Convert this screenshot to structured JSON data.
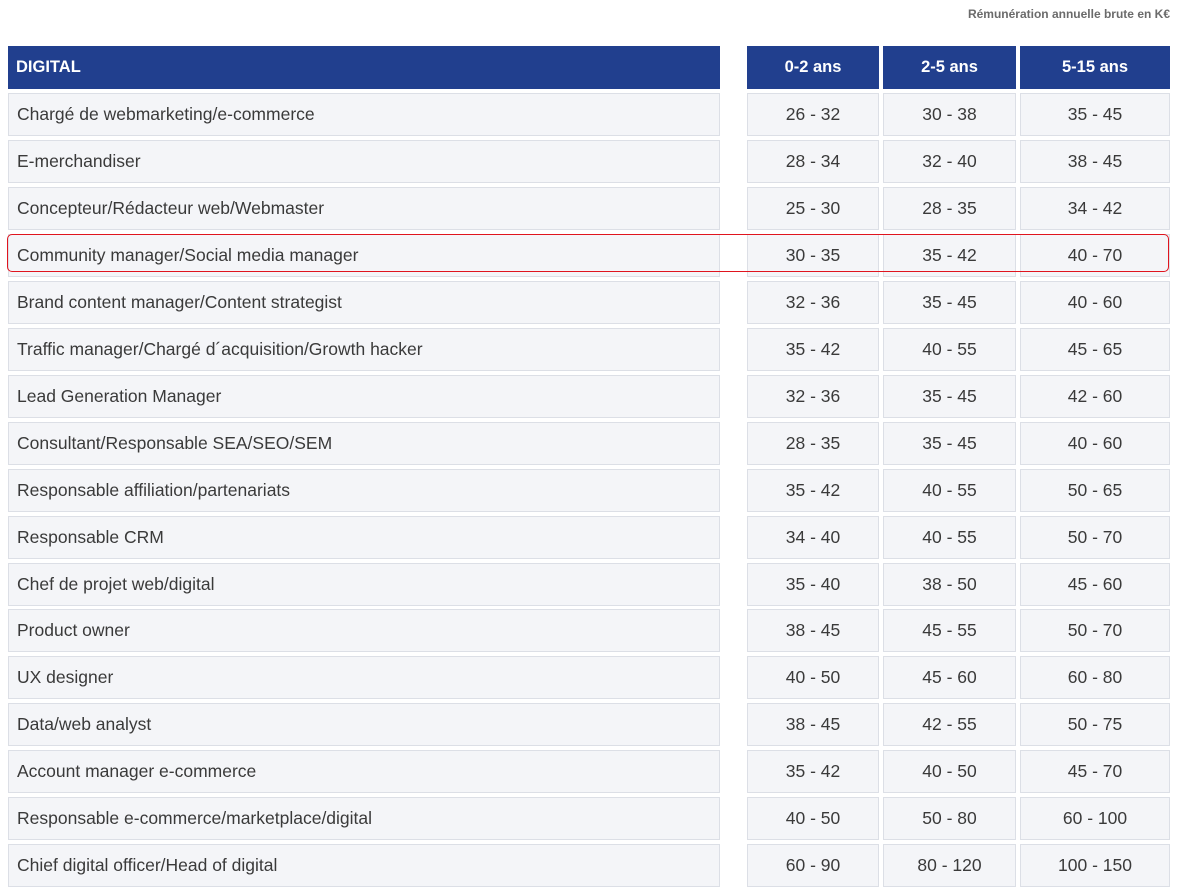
{
  "caption": "Rémunération annuelle brute en K€",
  "header": {
    "category": "DIGITAL",
    "col1": "0-2 ans",
    "col2": "2-5 ans",
    "col3": "5-15 ans"
  },
  "highlighted_row": "Community manager/Social media manager",
  "rows": [
    {
      "title": "Chargé de webmarketing/e-commerce",
      "r1": "26 - 32",
      "r2": "30 - 38",
      "r3": "35 - 45"
    },
    {
      "title": "E-merchandiser",
      "r1": "28 - 34",
      "r2": "32 - 40",
      "r3": "38 - 45"
    },
    {
      "title": "Concepteur/Rédacteur web/Webmaster",
      "r1": "25 - 30",
      "r2": "28 - 35",
      "r3": "34 - 42"
    },
    {
      "title": "Community manager/Social media manager",
      "r1": "30 - 35",
      "r2": "35 - 42",
      "r3": "40 - 70"
    },
    {
      "title": "Brand content manager/Content strategist",
      "r1": "32 - 36",
      "r2": "35 - 45",
      "r3": "40 - 60"
    },
    {
      "title": "Traffic manager/Chargé d´acquisition/Growth hacker",
      "r1": "35 - 42",
      "r2": "40 - 55",
      "r3": "45 - 65"
    },
    {
      "title": "Lead Generation Manager",
      "r1": "32 - 36",
      "r2": "35 - 45",
      "r3": "42 - 60"
    },
    {
      "title": "Consultant/Responsable SEA/SEO/SEM",
      "r1": "28 - 35",
      "r2": "35 - 45",
      "r3": "40 - 60"
    },
    {
      "title": "Responsable affiliation/partenariats",
      "r1": "35 - 42",
      "r2": "40 - 55",
      "r3": "50 - 65"
    },
    {
      "title": "Responsable CRM",
      "r1": "34 - 40",
      "r2": "40 - 55",
      "r3": "50 - 70"
    },
    {
      "title": "Chef de projet web/digital",
      "r1": "35 - 40",
      "r2": "38 - 50",
      "r3": "45 - 60"
    },
    {
      "title": "Product owner",
      "r1": "38 - 45",
      "r2": "45 - 55",
      "r3": "50 - 70"
    },
    {
      "title": "UX designer",
      "r1": "40 - 50",
      "r2": "45 - 60",
      "r3": "60 - 80"
    },
    {
      "title": "Data/web analyst",
      "r1": "38 - 45",
      "r2": "42 - 55",
      "r3": "50 - 75"
    },
    {
      "title": "Account manager e-commerce",
      "r1": "35 - 42",
      "r2": "40 - 50",
      "r3": "45 - 70"
    },
    {
      "title": "Responsable e-commerce/marketplace/digital",
      "r1": "40 - 50",
      "r2": "50 - 80",
      "r3": "60 - 100"
    },
    {
      "title": "Chief digital officer/Head of digital",
      "r1": "60 - 90",
      "r2": "80 - 120",
      "r3": "100 - 150"
    }
  ]
}
